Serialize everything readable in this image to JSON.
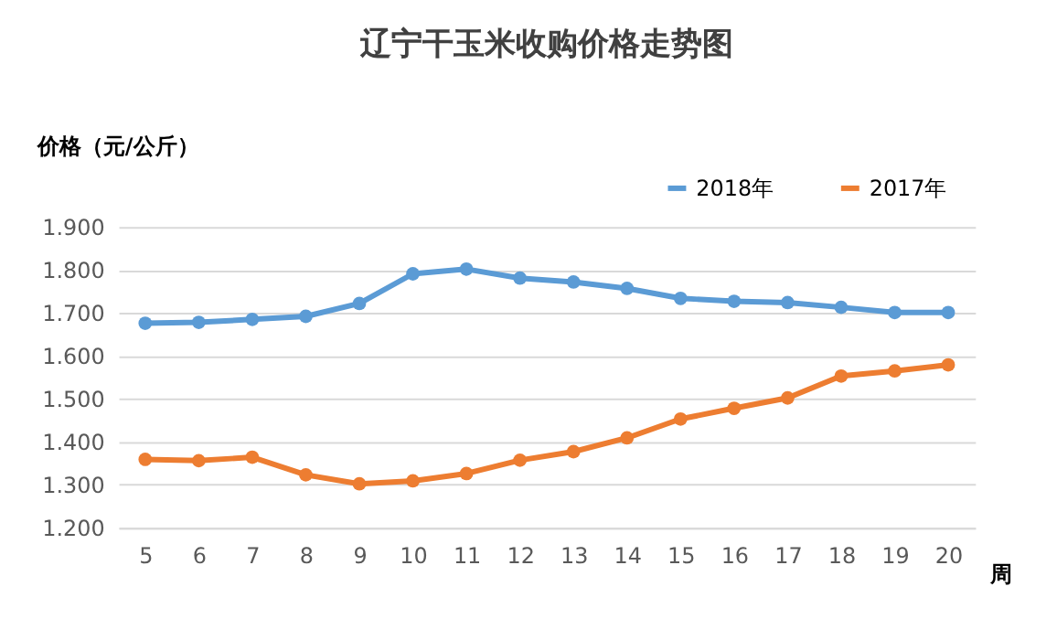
{
  "chart_data": {
    "type": "line",
    "title": "辽宁干玉米收购价格走势图",
    "xlabel": "周",
    "ylabel": "价格（元/公斤）",
    "categories": [
      "5",
      "6",
      "7",
      "8",
      "9",
      "10",
      "11",
      "12",
      "13",
      "14",
      "15",
      "16",
      "17",
      "18",
      "19",
      "20"
    ],
    "series": [
      {
        "name": "2018年",
        "color": "#5b9bd5",
        "values": [
          1.676,
          1.678,
          1.685,
          1.692,
          1.722,
          1.791,
          1.802,
          1.781,
          1.772,
          1.757,
          1.734,
          1.727,
          1.724,
          1.713,
          1.701,
          1.701
        ]
      },
      {
        "name": "2017年",
        "color": "#ed7d31",
        "values": [
          1.359,
          1.356,
          1.364,
          1.323,
          1.302,
          1.309,
          1.326,
          1.357,
          1.377,
          1.409,
          1.453,
          1.478,
          1.502,
          1.553,
          1.565,
          1.579
        ]
      }
    ],
    "ylim": [
      1.2,
      1.9
    ],
    "yticks": [
      {
        "value": 1.2,
        "label": "1.200"
      },
      {
        "value": 1.3,
        "label": "1.300"
      },
      {
        "value": 1.4,
        "label": "1.400"
      },
      {
        "value": 1.5,
        "label": "1.500"
      },
      {
        "value": 1.6,
        "label": "1.600"
      },
      {
        "value": 1.7,
        "label": "1.700"
      },
      {
        "value": 1.8,
        "label": "1.800"
      },
      {
        "value": 1.9,
        "label": "1.900"
      }
    ],
    "grid": "y",
    "legend": "top right",
    "marker": "circle",
    "line_style": "solid"
  }
}
